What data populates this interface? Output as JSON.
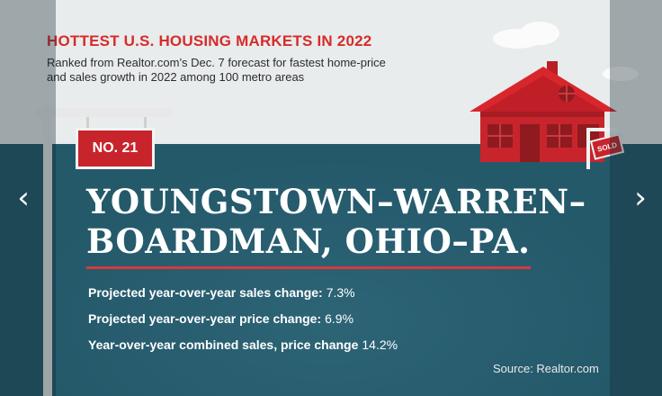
{
  "header": {
    "title": "HOTTEST U.S. HOUSING MARKETS IN 2022",
    "subtitle": "Ranked from Realtor.com’s Dec. 7 forecast for fastest home-price and sales growth in 2022 among 100 metro areas"
  },
  "rank": {
    "label": "NO. 21"
  },
  "market": {
    "name": "YOUNGSTOWN–WARREN–BOARDMAN, OHIO–PA."
  },
  "stats": [
    {
      "label": "Projected year-over-year sales change:",
      "value": "7.3%"
    },
    {
      "label": "Projected year-over-year price change:",
      "value": "6.9%"
    },
    {
      "label": "Year-over-year combined sales, price change",
      "value": "14.2%"
    }
  ],
  "source": "Source: Realtor.com",
  "sold_sign": "SOLD",
  "nav": {
    "prev_icon": "chevron-left-icon",
    "next_icon": "chevron-right-icon"
  },
  "colors": {
    "accent": "#d62b2b",
    "sea": "#24596a",
    "sky": "#e9ecec",
    "house": "#c8242c"
  }
}
